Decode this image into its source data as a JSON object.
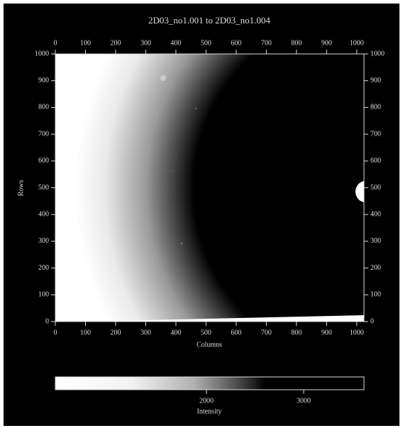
{
  "chart_data": {
    "type": "image",
    "title": "2D03_no1.001 to 2D03_no1.004",
    "xlabel": "Columns",
    "ylabel": "Rows",
    "xlim": [
      0,
      1024
    ],
    "xticks": [
      0,
      100,
      200,
      300,
      400,
      500,
      600,
      700,
      800,
      900,
      1000
    ],
    "ylim": [
      0,
      1000
    ],
    "yticks": [
      0,
      100,
      200,
      300,
      400,
      500,
      600,
      700,
      800,
      900,
      1000
    ],
    "colorbar": {
      "label": "Intensity",
      "lim": [
        445,
        3620
      ],
      "ticks": [
        2000,
        3000
      ]
    }
  }
}
